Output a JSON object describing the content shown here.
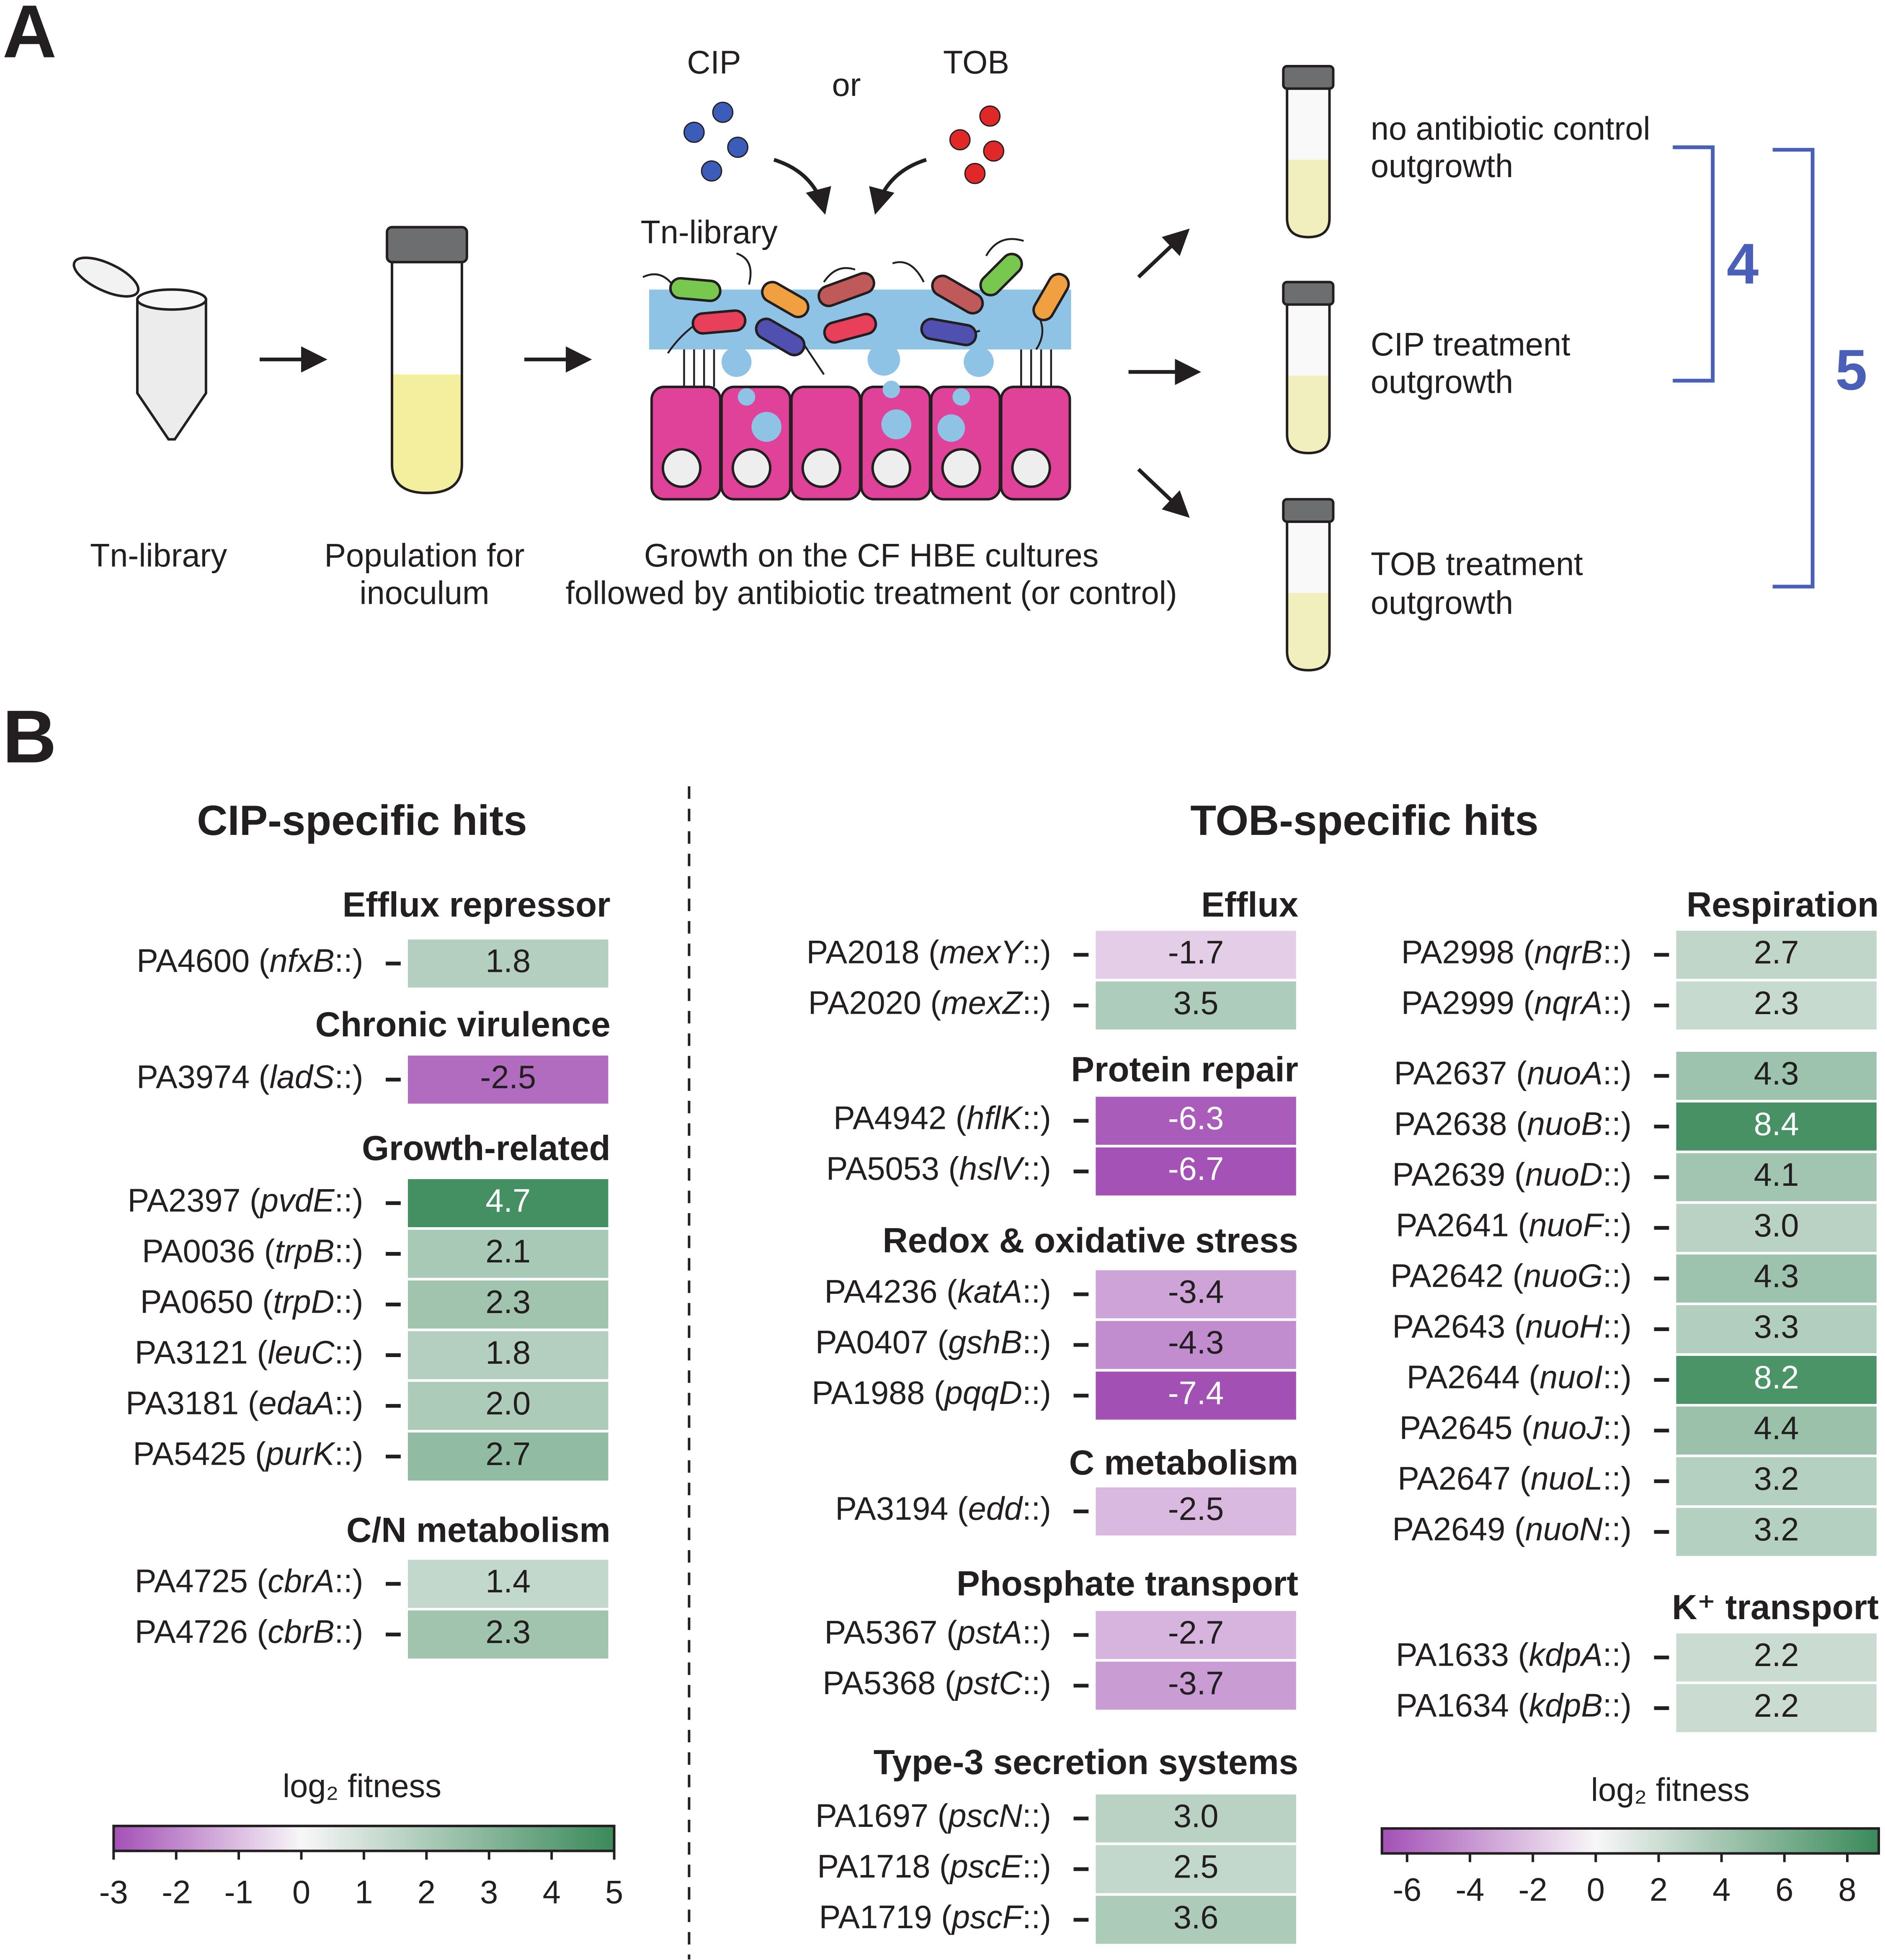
{
  "panel_labels": [
    "A",
    "B"
  ],
  "panel_a": {
    "antibiotic_1": "CIP",
    "or": "or",
    "antibiotic_2": "TOB",
    "library": "Tn-library",
    "steps": [
      [
        "Tn-library"
      ],
      [
        "Population for",
        "inoculum"
      ],
      [
        "Growth on the CF HBE cultures",
        "followed by antibiotic treatment (or control)"
      ]
    ],
    "outcomes": [
      [
        "no antibiotic control",
        "outgrowth"
      ],
      [
        "CIP treatment",
        "outgrowth"
      ],
      [
        "TOB treatment",
        "outgrowth"
      ]
    ],
    "comparisons": [
      "4",
      "5"
    ]
  },
  "chart_data": [
    {
      "type": "heatmap",
      "title": "CIP-specific hits",
      "groups": [
        {
          "title": "Efflux repressor",
          "rows": [
            {
              "label": "PA4600 (nfxB::)",
              "value": 1.8
            }
          ]
        },
        {
          "title": "Chronic virulence",
          "rows": [
            {
              "label": "PA3974 (ladS::)",
              "value": -2.5
            }
          ]
        },
        {
          "title": "Growth-related",
          "rows": [
            {
              "label": "PA2397 (pvdE::)",
              "value": 4.7
            },
            {
              "label": "PA0036 (trpB::)",
              "value": 2.1
            },
            {
              "label": "PA0650 (trpD::)",
              "value": 2.3
            },
            {
              "label": "PA3121 (leuC::)",
              "value": 1.8
            },
            {
              "label": "PA3181 (edaA::)",
              "value": 2,
              "value_label": "2.0"
            },
            {
              "label": "PA5425 (purK::)",
              "value": 2.7
            }
          ]
        },
        {
          "title": "C/N metabolism",
          "rows": [
            {
              "label": "PA4725 (cbrA::)",
              "value": 1.4
            },
            {
              "label": "PA4726 (cbrB::)",
              "value": 2.3
            }
          ]
        }
      ],
      "colorbar": {
        "title": "log₂ fitness",
        "xlim": [
          -3,
          5
        ],
        "xticks": [
          -3,
          -2,
          -1,
          0,
          1,
          2,
          3,
          4,
          5
        ],
        "colors": [
          "#a350b5",
          "#f8f6f8",
          "#3a8a5a"
        ]
      }
    },
    {
      "type": "heatmap",
      "title": "TOB-specific hits",
      "groups": [
        {
          "title": "Efflux",
          "rows": [
            {
              "label": "PA2018 (mexY::)",
              "value": -1.7
            },
            {
              "label": "PA2020 (mexZ::)",
              "value": 3.5
            }
          ]
        },
        {
          "title": "Protein repair",
          "rows": [
            {
              "label": "PA4942 (hflK::)",
              "value": -6.3
            },
            {
              "label": "PA5053 (hslV::)",
              "value": -6.7
            }
          ]
        },
        {
          "title": "Redox & oxidative stress",
          "rows": [
            {
              "label": "PA4236 (katA::)",
              "value": -3.4
            },
            {
              "label": "PA0407 (gshB::)",
              "value": -4.3
            },
            {
              "label": "PA1988 (pqqD::)",
              "value": -7.4
            }
          ]
        },
        {
          "title": "C metabolism",
          "rows": [
            {
              "label": "PA3194 (edd::)",
              "value": -2.5
            }
          ]
        },
        {
          "title": "Phosphate transport",
          "rows": [
            {
              "label": "PA5367 (pstA::)",
              "value": -2.7
            },
            {
              "label": "PA5368 (pstC::)",
              "value": -3.7
            }
          ]
        },
        {
          "title": "Type-3 secretion systems",
          "rows": [
            {
              "label": "PA1697 (pscN::)",
              "value": 3,
              "value_label": "3.0"
            },
            {
              "label": "PA1718 (pscE::)",
              "value": 2.5
            },
            {
              "label": "PA1719 (pscF::)",
              "value": 3.6
            }
          ]
        },
        {
          "title": "Respiration",
          "rows": [
            {
              "label": "PA2998 (nqrB::)",
              "value": 2.7
            },
            {
              "label": "PA2999 (nqrA::)",
              "value": 2.3
            }
          ]
        },
        {
          "rows": [
            {
              "label": "PA2637 (nuoA::)",
              "value": 4.3
            },
            {
              "label": "PA2638 (nuoB::)",
              "value": 8.4
            },
            {
              "label": "PA2639 (nuoD::)",
              "value": 4.1
            },
            {
              "label": "PA2641 (nuoF::)",
              "value": 3,
              "value_label": "3.0"
            },
            {
              "label": "PA2642 (nuoG::)",
              "value": 4.3
            },
            {
              "label": "PA2643 (nuoH::)",
              "value": 3.3
            },
            {
              "label": "PA2644 (nuoI::)",
              "value": 8.2
            },
            {
              "label": "PA2645 (nuoJ::)",
              "value": 4.4
            },
            {
              "label": "PA2647 (nuoL::)",
              "value": 3.2
            },
            {
              "label": "PA2649 (nuoN::)",
              "value": 3.2
            }
          ]
        },
        {
          "title": "K⁺ transport",
          "rows": [
            {
              "label": "PA1633 (kdpA::)",
              "value": 2.2
            },
            {
              "label": "PA1634 (kdpB::)",
              "value": 2.2
            }
          ]
        }
      ],
      "colorbar": {
        "title": "log₂ fitness",
        "xlim": [
          -6.8,
          9
        ],
        "xticks": [
          -6,
          -4,
          -2,
          0,
          2,
          4,
          6,
          8
        ],
        "colors": [
          "#a350b5",
          "#f8f6f8",
          "#3a8a5a"
        ]
      }
    }
  ]
}
